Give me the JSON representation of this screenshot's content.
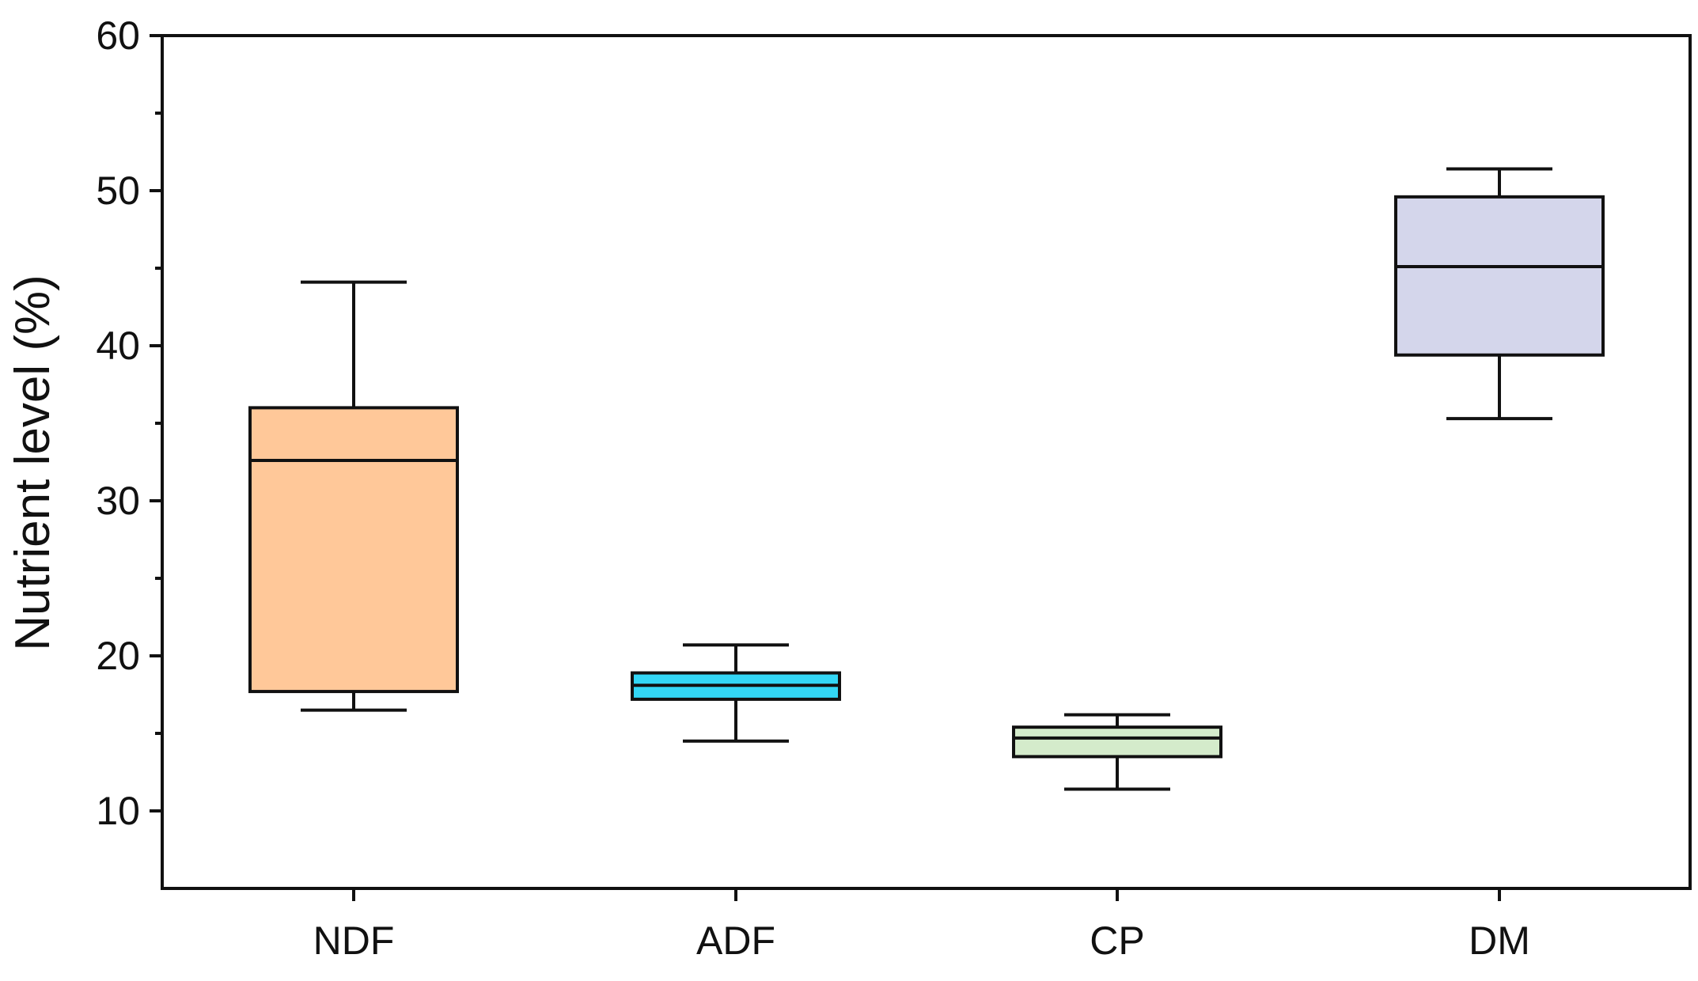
{
  "chart_data": {
    "type": "box",
    "title": "",
    "xlabel": "",
    "ylabel": "Nutrient level (%)",
    "ylim": [
      5,
      60
    ],
    "yticks": [
      10,
      20,
      30,
      40,
      50,
      60
    ],
    "yminor_step": 5,
    "grid": false,
    "legend": "none",
    "categories": [
      "NDF",
      "ADF",
      "CP",
      "DM"
    ],
    "boxes": [
      {
        "category": "NDF",
        "whisker_low": 16.5,
        "q1": 17.7,
        "median": 32.6,
        "q3": 36.0,
        "whisker_high": 44.1,
        "color": "#FFC899"
      },
      {
        "category": "ADF",
        "whisker_low": 14.5,
        "q1": 17.2,
        "median": 18.1,
        "q3": 18.9,
        "whisker_high": 20.7,
        "color": "#33D6F5"
      },
      {
        "category": "CP",
        "whisker_low": 11.4,
        "q1": 13.5,
        "median": 14.7,
        "q3": 15.4,
        "whisker_high": 16.2,
        "color": "#D4EBCB"
      },
      {
        "category": "DM",
        "whisker_low": 35.3,
        "q1": 39.4,
        "median": 45.1,
        "q3": 49.6,
        "whisker_high": 51.4,
        "color": "#D4D6EB"
      }
    ]
  }
}
